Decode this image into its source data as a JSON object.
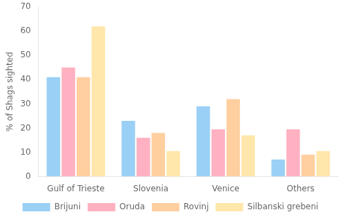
{
  "chart_data": {
    "type": "bar",
    "categories": [
      "Gulf of Trieste",
      "Slovenia",
      "Venice",
      "Others"
    ],
    "series": [
      {
        "name": "Brijuni",
        "values": [
          41,
          23,
          29,
          7
        ]
      },
      {
        "name": "Oruda",
        "values": [
          45,
          16,
          19.5,
          19.5
        ]
      },
      {
        "name": "Rovinj",
        "values": [
          41,
          18,
          32,
          9
        ]
      },
      {
        "name": "Silbanski grebeni",
        "values": [
          62,
          10.5,
          17,
          10.5
        ]
      }
    ],
    "ylabel": "% of Shags sighted",
    "ylim": [
      0,
      70
    ],
    "yticks": [
      0,
      10,
      20,
      30,
      40,
      50,
      60,
      70
    ],
    "grid": false,
    "legend": "bottom"
  }
}
